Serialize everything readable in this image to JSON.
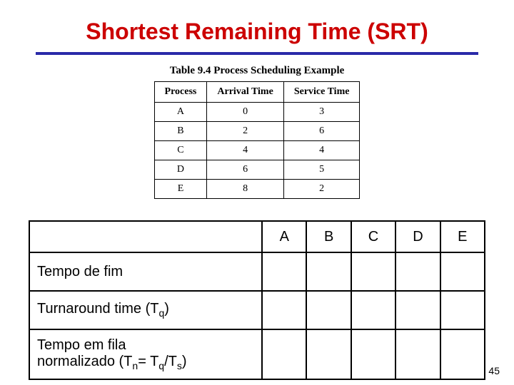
{
  "title": "Shortest Remaining Time (SRT)",
  "title_color": "#cc0000",
  "underline_color": "#2a2aa8",
  "sched_caption": "Table 9.4 Process Scheduling Example",
  "sched_headers": {
    "c0": "Process",
    "c1": "Arrival Time",
    "c2": "Service Time"
  },
  "sched_rows": {
    "r0": {
      "p": "A",
      "a": "0",
      "s": "3"
    },
    "r1": {
      "p": "B",
      "a": "2",
      "s": "6"
    },
    "r2": {
      "p": "C",
      "a": "4",
      "s": "4"
    },
    "r3": {
      "p": "D",
      "a": "6",
      "s": "5"
    },
    "r4": {
      "p": "E",
      "a": "8",
      "s": "2"
    }
  },
  "results": {
    "columns": {
      "c0": "A",
      "c1": "B",
      "c2": "C",
      "c3": "D",
      "c4": "E"
    },
    "rows": {
      "r0": "Tempo de fim",
      "r1_pre": "Turnaround time ",
      "r1_paren": "(T",
      "r1_sub": "q",
      "r1_close": ")",
      "r2_l1": "Tempo em fila",
      "r2_l2_pre": "normalizado ",
      "r2_l2_paren": "(T",
      "r2_l2_sub1": "n",
      "r2_l2_eq": "= T",
      "r2_l2_sub2": "q",
      "r2_l2_div": "/T",
      "r2_l2_sub3": "s",
      "r2_l2_close": ")"
    }
  },
  "page_number": "45"
}
